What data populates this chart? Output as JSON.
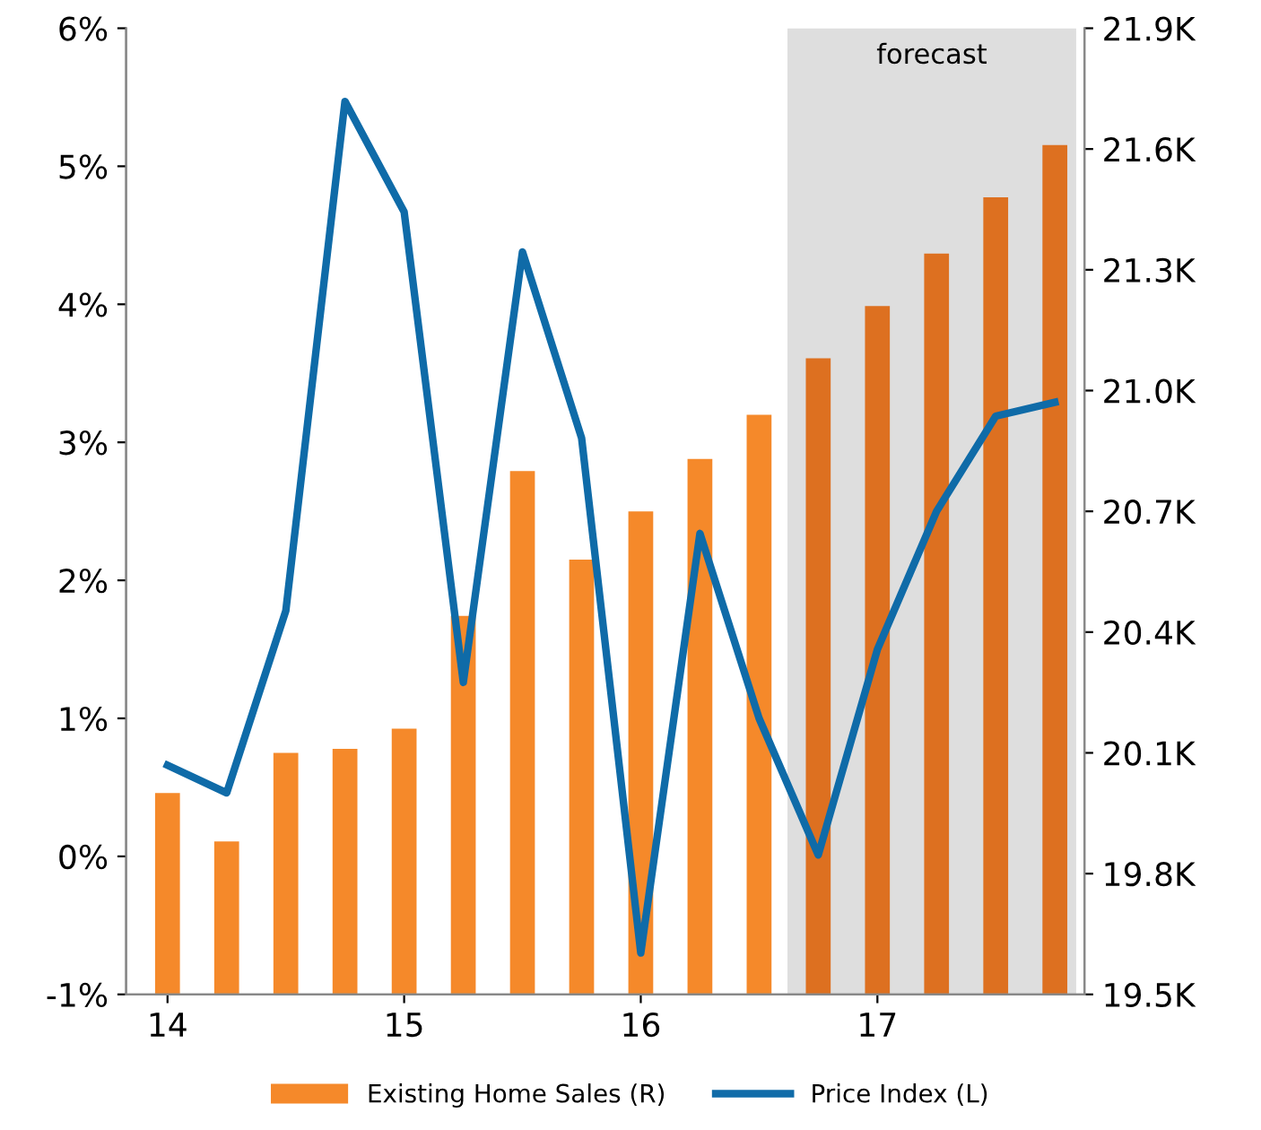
{
  "chart_data": {
    "type": "bar",
    "x": [
      2014,
      2014.25,
      2014.5,
      2014.75,
      2015,
      2015.25,
      2015.5,
      2015.75,
      2016,
      2016.25,
      2016.5,
      2016.75,
      2017,
      2017.25,
      2017.5,
      2017.75
    ],
    "series": [
      {
        "name": "Existing Home Sales (R)",
        "axis": "y2",
        "color": "#f5892a",
        "colors": [
          "#f5892a",
          "#f5892a",
          "#f5892a",
          "#f5892a",
          "#f5892a",
          "#f5892a",
          "#f5892a",
          "#f5892a",
          "#f5892a",
          "#f5892a",
          "#f5892a",
          "#dd7020",
          "#dd7020",
          "#dd7020",
          "#dd7020",
          "#dd7020"
        ],
        "values": [
          20.0,
          19.88,
          20.1,
          20.11,
          20.16,
          20.44,
          20.8,
          20.58,
          20.7,
          20.83,
          20.94,
          21.08,
          21.21,
          21.34,
          21.48,
          21.61
        ]
      },
      {
        "name": "Price Index (L)",
        "type": "line",
        "axis": "y",
        "color": "#0f6ba8",
        "values": [
          0.66,
          0.46,
          1.78,
          5.47,
          4.67,
          1.26,
          4.38,
          3.03,
          -0.7,
          2.34,
          1.0,
          0.01,
          1.5,
          2.5,
          3.19,
          3.29
        ]
      }
    ],
    "xlim": [
      2013.825,
      2017.875
    ],
    "xticks": [
      {
        "value": 2014,
        "label": "14"
      },
      {
        "value": 2015,
        "label": "15"
      },
      {
        "value": 2016,
        "label": "16"
      },
      {
        "value": 2017,
        "label": "17"
      }
    ],
    "ylim": [
      -1,
      6
    ],
    "yticks": [
      {
        "value": -1,
        "label": "-1%"
      },
      {
        "value": 0,
        "label": "0%"
      },
      {
        "value": 1,
        "label": "1%"
      },
      {
        "value": 2,
        "label": "2%"
      },
      {
        "value": 3,
        "label": "3%"
      },
      {
        "value": 4,
        "label": "4%"
      },
      {
        "value": 5,
        "label": "5%"
      },
      {
        "value": 6,
        "label": "6%"
      }
    ],
    "y2lim": [
      19.5,
      21.9
    ],
    "y2ticks": [
      {
        "value": 19.5,
        "label": "19.5K"
      },
      {
        "value": 19.8,
        "label": "19.8K"
      },
      {
        "value": 20.1,
        "label": "20.1K"
      },
      {
        "value": 20.4,
        "label": "20.4K"
      },
      {
        "value": 20.7,
        "label": "20.7K"
      },
      {
        "value": 21.0,
        "label": "21.0K"
      },
      {
        "value": 21.3,
        "label": "21.3K"
      },
      {
        "value": 21.6,
        "label": "21.6K"
      },
      {
        "value": 21.9,
        "label": "21.9K"
      }
    ],
    "bands": [
      {
        "axis": "x",
        "from": 2016.62,
        "to": 2017.84,
        "label": "forecast",
        "color": "#dedede"
      }
    ],
    "legend": "bottom",
    "grid": false,
    "marker": "none",
    "line_style": "solid"
  }
}
